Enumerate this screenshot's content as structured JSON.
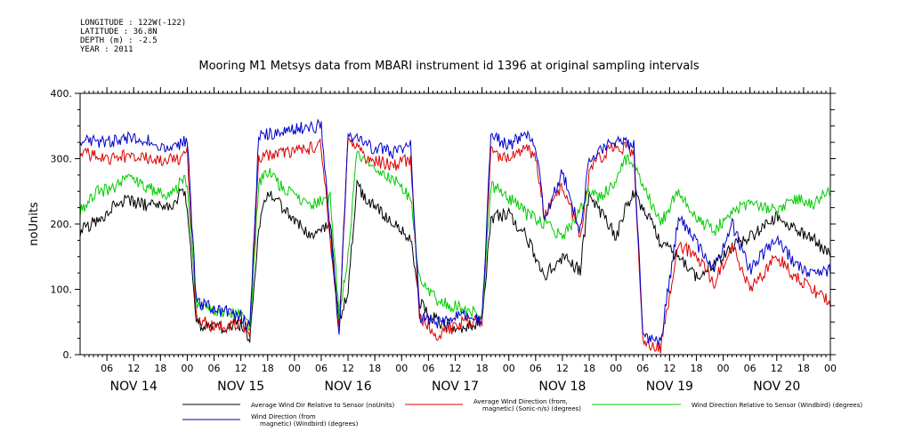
{
  "meta": {
    "longitude": "LONGITUDE : 122W(-122)",
    "latitude": "LATITUDE : 36.8N",
    "depth": "DEPTH (m) : -2.5",
    "year": "YEAR : 2011"
  },
  "chart_data": {
    "type": "line",
    "title": "Mooring M1 Metsys data from MBARI instrument id 1396 at original sampling intervals",
    "ylabel": "noUnits",
    "xlabel": "",
    "ylim": [
      0,
      400
    ],
    "yticks": [
      "0.",
      "100.",
      "200.",
      "300.",
      "400."
    ],
    "xlim_hours": [
      0,
      168
    ],
    "hour_ticks": [
      "06",
      "12",
      "18",
      "00",
      "06",
      "12",
      "18",
      "00",
      "06",
      "12",
      "18",
      "00",
      "06",
      "12",
      "18",
      "00",
      "06",
      "12",
      "18",
      "00",
      "06",
      "12",
      "18",
      "00",
      "06",
      "12",
      "18",
      "00"
    ],
    "day_labels": [
      "NOV 14",
      "NOV 15",
      "NOV 16",
      "NOV 17",
      "NOV 18",
      "NOV 19",
      "NOV 20"
    ],
    "colors": {
      "black": "#000000",
      "red": "#dd0000",
      "green": "#00cc00",
      "blue": "#0000cc"
    },
    "series": [
      {
        "name": "Average Wind Dir Relative to Sensor (noUnits)",
        "color": "#000000",
        "knots": [
          [
            0,
            190
          ],
          [
            4,
            205
          ],
          [
            8,
            230
          ],
          [
            10,
            235
          ],
          [
            14,
            230
          ],
          [
            20,
            225
          ],
          [
            22,
            240
          ],
          [
            23,
            255
          ],
          [
            24,
            230
          ],
          [
            26,
            50
          ],
          [
            30,
            40
          ],
          [
            36,
            45
          ],
          [
            38,
            20
          ],
          [
            40,
            190
          ],
          [
            42,
            250
          ],
          [
            46,
            220
          ],
          [
            52,
            180
          ],
          [
            56,
            200
          ],
          [
            58,
            50
          ],
          [
            60,
            100
          ],
          [
            62,
            260
          ],
          [
            64,
            240
          ],
          [
            70,
            200
          ],
          [
            74,
            180
          ],
          [
            76,
            80
          ],
          [
            80,
            50
          ],
          [
            86,
            40
          ],
          [
            90,
            50
          ],
          [
            92,
            210
          ],
          [
            96,
            215
          ],
          [
            100,
            180
          ],
          [
            104,
            120
          ],
          [
            108,
            150
          ],
          [
            112,
            130
          ],
          [
            114,
            250
          ],
          [
            116,
            225
          ],
          [
            120,
            180
          ],
          [
            122,
            220
          ],
          [
            124,
            250
          ],
          [
            128,
            200
          ],
          [
            130,
            170
          ],
          [
            134,
            150
          ],
          [
            138,
            120
          ],
          [
            142,
            140
          ],
          [
            146,
            165
          ],
          [
            150,
            180
          ],
          [
            156,
            210
          ],
          [
            160,
            190
          ],
          [
            164,
            180
          ],
          [
            168,
            150
          ]
        ]
      },
      {
        "name": "Average Wind Direction (from, magnetic) (Sonic-n/s) (degrees)",
        "color": "#dd0000",
        "knots": [
          [
            0,
            310
          ],
          [
            6,
            300
          ],
          [
            12,
            305
          ],
          [
            18,
            295
          ],
          [
            22,
            300
          ],
          [
            24,
            310
          ],
          [
            26,
            60
          ],
          [
            30,
            40
          ],
          [
            36,
            50
          ],
          [
            38,
            30
          ],
          [
            40,
            300
          ],
          [
            44,
            310
          ],
          [
            48,
            310
          ],
          [
            54,
            320
          ],
          [
            58,
            40
          ],
          [
            60,
            330
          ],
          [
            64,
            300
          ],
          [
            70,
            290
          ],
          [
            74,
            300
          ],
          [
            76,
            60
          ],
          [
            80,
            30
          ],
          [
            86,
            50
          ],
          [
            90,
            50
          ],
          [
            92,
            310
          ],
          [
            96,
            300
          ],
          [
            100,
            320
          ],
          [
            102,
            300
          ],
          [
            104,
            210
          ],
          [
            108,
            260
          ],
          [
            112,
            180
          ],
          [
            114,
            280
          ],
          [
            116,
            300
          ],
          [
            120,
            320
          ],
          [
            124,
            310
          ],
          [
            126,
            20
          ],
          [
            130,
            10
          ],
          [
            134,
            170
          ],
          [
            138,
            150
          ],
          [
            142,
            110
          ],
          [
            146,
            170
          ],
          [
            150,
            100
          ],
          [
            156,
            150
          ],
          [
            160,
            120
          ],
          [
            164,
            100
          ],
          [
            168,
            80
          ]
        ]
      },
      {
        "name": "Wind Direction Relative to Sensor (Windbird) (degrees)",
        "color": "#00cc00",
        "knots": [
          [
            0,
            220
          ],
          [
            4,
            250
          ],
          [
            8,
            255
          ],
          [
            10,
            270
          ],
          [
            14,
            260
          ],
          [
            20,
            240
          ],
          [
            22,
            260
          ],
          [
            23,
            270
          ],
          [
            24,
            260
          ],
          [
            26,
            80
          ],
          [
            30,
            70
          ],
          [
            36,
            60
          ],
          [
            38,
            40
          ],
          [
            40,
            260
          ],
          [
            42,
            280
          ],
          [
            46,
            250
          ],
          [
            52,
            230
          ],
          [
            56,
            240
          ],
          [
            58,
            60
          ],
          [
            60,
            150
          ],
          [
            62,
            310
          ],
          [
            64,
            290
          ],
          [
            70,
            270
          ],
          [
            74,
            240
          ],
          [
            76,
            120
          ],
          [
            80,
            80
          ],
          [
            86,
            70
          ],
          [
            90,
            60
          ],
          [
            92,
            260
          ],
          [
            96,
            240
          ],
          [
            100,
            215
          ],
          [
            104,
            200
          ],
          [
            108,
            180
          ],
          [
            112,
            220
          ],
          [
            114,
            250
          ],
          [
            116,
            240
          ],
          [
            120,
            260
          ],
          [
            122,
            300
          ],
          [
            124,
            290
          ],
          [
            128,
            230
          ],
          [
            130,
            200
          ],
          [
            134,
            250
          ],
          [
            138,
            210
          ],
          [
            142,
            190
          ],
          [
            146,
            220
          ],
          [
            150,
            230
          ],
          [
            156,
            220
          ],
          [
            160,
            240
          ],
          [
            164,
            230
          ],
          [
            168,
            250
          ]
        ]
      },
      {
        "name": "Wind Direction (from, magnetic) (Windbird) (degrees)",
        "color": "#0000cc",
        "knots": [
          [
            0,
            330
          ],
          [
            6,
            325
          ],
          [
            12,
            335
          ],
          [
            18,
            320
          ],
          [
            22,
            320
          ],
          [
            24,
            330
          ],
          [
            26,
            80
          ],
          [
            30,
            70
          ],
          [
            36,
            60
          ],
          [
            38,
            40
          ],
          [
            40,
            335
          ],
          [
            44,
            340
          ],
          [
            48,
            345
          ],
          [
            54,
            350
          ],
          [
            58,
            30
          ],
          [
            60,
            340
          ],
          [
            64,
            320
          ],
          [
            70,
            310
          ],
          [
            74,
            320
          ],
          [
            76,
            60
          ],
          [
            80,
            50
          ],
          [
            86,
            60
          ],
          [
            90,
            50
          ],
          [
            92,
            335
          ],
          [
            96,
            320
          ],
          [
            100,
            340
          ],
          [
            102,
            320
          ],
          [
            104,
            210
          ],
          [
            108,
            280
          ],
          [
            112,
            190
          ],
          [
            114,
            300
          ],
          [
            116,
            310
          ],
          [
            120,
            330
          ],
          [
            124,
            320
          ],
          [
            126,
            30
          ],
          [
            130,
            20
          ],
          [
            134,
            210
          ],
          [
            138,
            170
          ],
          [
            142,
            130
          ],
          [
            146,
            200
          ],
          [
            150,
            130
          ],
          [
            156,
            180
          ],
          [
            160,
            140
          ],
          [
            164,
            120
          ],
          [
            168,
            130
          ]
        ]
      }
    ],
    "legend": [
      {
        "text_lines": [
          "Average Wind Dir Relative to Sensor (noUnits)"
        ],
        "color": "#000000"
      },
      {
        "text_lines": [
          "Average Wind Direction (from,",
          "magnetic) (Sonic-n/s) (degrees)"
        ],
        "color": "#dd0000"
      },
      {
        "text_lines": [
          "Wind Direction Relative to Sensor (Windbird) (degrees)"
        ],
        "color": "#00cc00"
      },
      {
        "text_lines": [
          "Wind Direction (from",
          "magnetic) (Windbird) (degrees)"
        ],
        "color": "#0000cc"
      }
    ]
  }
}
